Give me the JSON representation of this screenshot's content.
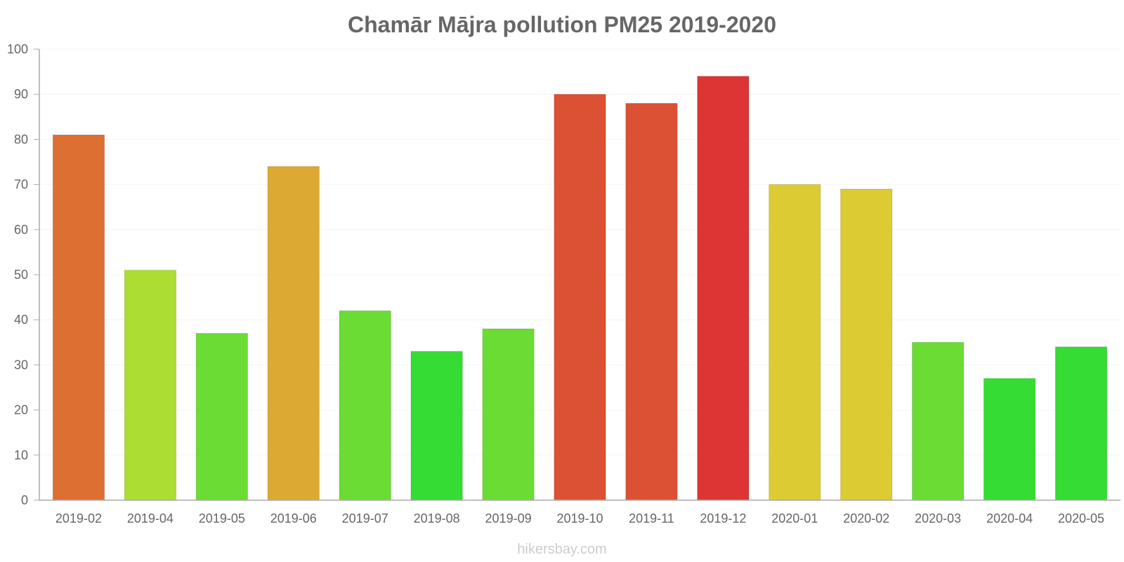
{
  "chart_data": {
    "type": "bar",
    "title": "Chamār Mājra pollution PM25 2019-2020",
    "xlabel": "",
    "ylabel": "",
    "ylim": [
      0,
      100
    ],
    "yticks": [
      "0",
      "10",
      "20",
      "30",
      "40",
      "50",
      "60",
      "70",
      "80",
      "90",
      "100"
    ],
    "grid": true,
    "categories": [
      "2019-02",
      "2019-04",
      "2019-05",
      "2019-06",
      "2019-07",
      "2019-08",
      "2019-09",
      "2019-10",
      "2019-11",
      "2019-12",
      "2020-01",
      "2020-02",
      "2020-03",
      "2020-04",
      "2020-05"
    ],
    "values": [
      81,
      51,
      37,
      74,
      42,
      33,
      38,
      90,
      88,
      94,
      70,
      69,
      35,
      27,
      34
    ],
    "colors": [
      "#de6f33",
      "#acdd33",
      "#6adc33",
      "#dcaa33",
      "#6adc33",
      "#34dc33",
      "#6adc33",
      "#dc5133",
      "#dc5133",
      "#dc3533",
      "#dccb33",
      "#dccb33",
      "#6adc33",
      "#34dc33",
      "#34dc33"
    ]
  },
  "footer": {
    "source": "hikersbay.com"
  }
}
